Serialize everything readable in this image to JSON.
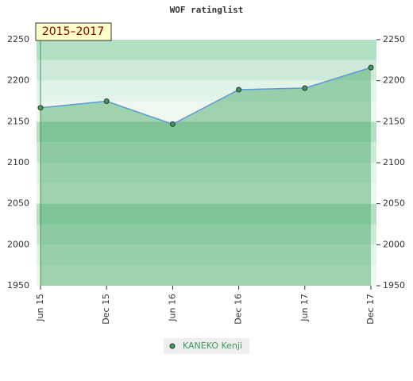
{
  "chart_data": {
    "type": "line",
    "title": "WOF ratinglist",
    "annotation": "2015–2017",
    "categories": [
      "Jun 15",
      "Dec 15",
      "Jun 16",
      "Dec 16",
      "Jun 17",
      "Dec 17"
    ],
    "series": [
      {
        "name": "KANEKO Kenji",
        "color": "#5b9bd5",
        "values": [
          2167,
          2175,
          2147,
          2189,
          2191,
          2216
        ]
      }
    ],
    "ylim": [
      1950,
      2250
    ],
    "yticks": [
      1950,
      2000,
      2050,
      2100,
      2150,
      2200,
      2250
    ],
    "grid": true
  }
}
